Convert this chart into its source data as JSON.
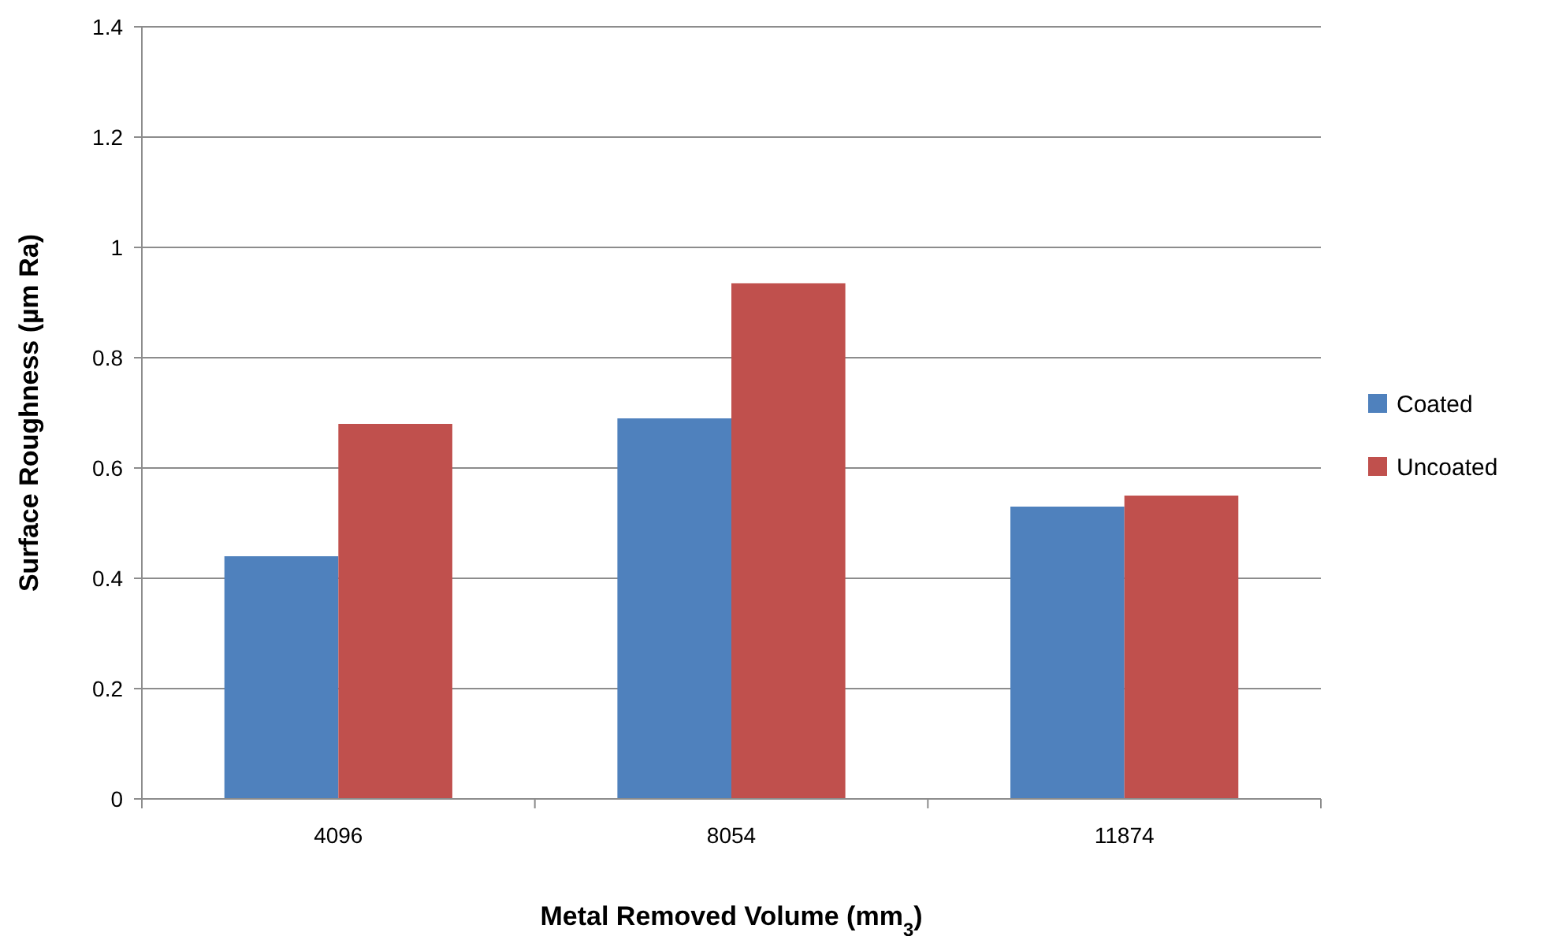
{
  "chart_data": {
    "type": "bar",
    "xlabel": "Metal Removed Volume (mm$_{3}$)",
    "ylabel": "Surface Roughness (µm Ra)",
    "categories": [
      "4096",
      "8054",
      "11874"
    ],
    "series": [
      {
        "name": "Coated",
        "color": "#4f81bd",
        "values": [
          0.44,
          0.69,
          0.53
        ]
      },
      {
        "name": "Uncoated",
        "color": "#c0504d",
        "values": [
          0.68,
          0.935,
          0.55
        ]
      }
    ],
    "ylim": [
      0,
      1.4
    ],
    "yticks": [
      0,
      0.2,
      0.4,
      0.6,
      0.8,
      1,
      1.2,
      1.4
    ],
    "grid": "y",
    "legend": "right"
  }
}
